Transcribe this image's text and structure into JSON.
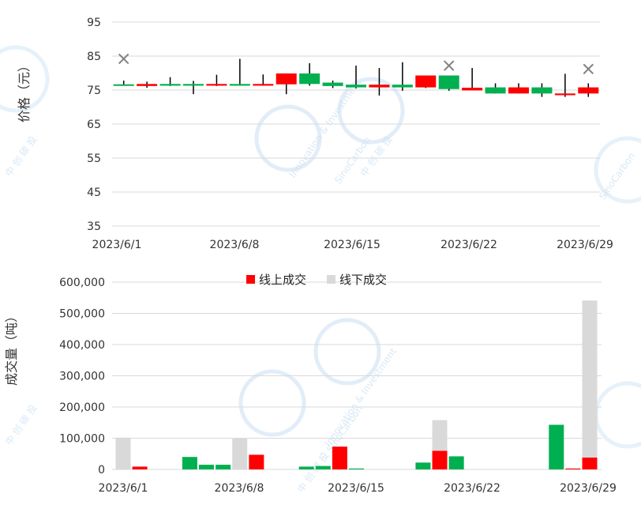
{
  "chart_data": [
    {
      "type": "candlestick",
      "ylabel": "价格（元）",
      "yticks": [
        35,
        45,
        55,
        65,
        75,
        85,
        95
      ],
      "ylim": [
        35,
        95
      ],
      "xticks": [
        "2023/6/1",
        "2023/6/8",
        "2023/6/15",
        "2023/6/22",
        "2023/6/29"
      ],
      "grid": true,
      "colors": {
        "up": "#ff0000",
        "down": "#00b050",
        "marker": "#7f7f7f",
        "wick": "#000000"
      },
      "candles": [
        {
          "date": "2023/6/1",
          "open": 76.3,
          "close": 76.7,
          "high": 77.8,
          "low": 76.3,
          "dir": "down"
        },
        {
          "date": "2023/6/2",
          "open": 76.2,
          "close": 76.8,
          "high": 77.5,
          "low": 75.7,
          "dir": "up"
        },
        {
          "date": "2023/6/3",
          "open": 76.3,
          "close": 76.8,
          "high": 78.8,
          "low": 76.2,
          "dir": "down"
        },
        {
          "date": "2023/6/4",
          "open": 76.3,
          "close": 76.8,
          "high": 77.7,
          "low": 73.8,
          "dir": "down"
        },
        {
          "date": "2023/6/5",
          "open": 76.3,
          "close": 76.8,
          "high": 79.5,
          "low": 76.2,
          "dir": "up"
        },
        {
          "date": "2023/6/6",
          "open": 76.3,
          "close": 76.8,
          "high": 84.2,
          "low": 76.3,
          "dir": "down"
        },
        {
          "date": "2023/6/7",
          "open": 76.3,
          "close": 76.8,
          "high": 79.6,
          "low": 76.3,
          "dir": "up"
        },
        {
          "date": "2023/6/8",
          "open": 76.7,
          "close": 79.9,
          "high": 79.9,
          "low": 73.8,
          "dir": "up"
        },
        {
          "date": "2023/6/9",
          "open": 76.8,
          "close": 79.9,
          "high": 82.9,
          "low": 76.3,
          "dir": "down"
        },
        {
          "date": "2023/6/10",
          "open": 76.2,
          "close": 77.2,
          "high": 77.8,
          "low": 75.6,
          "dir": "down"
        },
        {
          "date": "2023/6/11",
          "open": 75.8,
          "close": 76.6,
          "high": 82.2,
          "low": 75.5,
          "dir": "down"
        },
        {
          "date": "2023/6/12",
          "open": 75.8,
          "close": 76.6,
          "high": 81.5,
          "low": 73.4,
          "dir": "up"
        },
        {
          "date": "2023/6/13",
          "open": 75.8,
          "close": 76.6,
          "high": 83.2,
          "low": 74.8,
          "dir": "down"
        },
        {
          "date": "2023/6/14",
          "open": 75.8,
          "close": 79.3,
          "high": 79.3,
          "low": 75.6,
          "dir": "up"
        },
        {
          "date": "2023/6/15",
          "open": 75.3,
          "close": 79.3,
          "high": 79.3,
          "low": 74.8,
          "dir": "down"
        },
        {
          "date": "2023/6/16",
          "open": 74.9,
          "close": 75.7,
          "high": 81.5,
          "low": 74.9,
          "dir": "up"
        },
        {
          "date": "2023/6/17",
          "open": 74.0,
          "close": 75.8,
          "high": 77.0,
          "low": 74.0,
          "dir": "down"
        },
        {
          "date": "2023/6/18",
          "open": 74.0,
          "close": 75.8,
          "high": 77.0,
          "low": 74.0,
          "dir": "up"
        },
        {
          "date": "2023/6/19",
          "open": 74.0,
          "close": 75.8,
          "high": 77.0,
          "low": 73.0,
          "dir": "down"
        },
        {
          "date": "2023/6/20",
          "open": 73.5,
          "close": 74.0,
          "high": 79.8,
          "low": 73.0,
          "dir": "up"
        },
        {
          "date": "2023/6/21",
          "open": 74.0,
          "close": 75.8,
          "high": 77.0,
          "low": 73.0,
          "dir": "up"
        }
      ],
      "markers": [
        {
          "date": "2023/6/1",
          "value": 84.2
        },
        {
          "date": "2023/6/15",
          "value": 82.2
        },
        {
          "date": "2023/6/21",
          "value": 81.2
        }
      ]
    },
    {
      "type": "bar",
      "stacked": true,
      "ylabel": "成交量（吨）",
      "yticks": [
        "0",
        "100,000",
        "200,000",
        "300,000",
        "400,000",
        "500,000",
        "600,000"
      ],
      "ylim": [
        0,
        600000
      ],
      "xticks": [
        "2023/6/1",
        "2023/6/8",
        "2023/6/15",
        "2023/6/22",
        "2023/6/29"
      ],
      "legend": {
        "position": "top",
        "items": [
          {
            "name": "线上成交",
            "color": "#ff0000"
          },
          {
            "name": "线下成交",
            "color": "#d9d9d9"
          }
        ]
      },
      "grid": true,
      "colors": {
        "online": "#ff0000",
        "offline": "#d9d9d9",
        "green": "#00b050"
      },
      "bars": [
        {
          "date": "2023/6/1",
          "online": 0,
          "offline": 102000,
          "color": "offline"
        },
        {
          "date": "2023/6/2",
          "online": 9000,
          "offline": 0,
          "color": "online"
        },
        {
          "date": "2023/6/5",
          "online": 40000,
          "offline": 0,
          "color": "green"
        },
        {
          "date": "2023/6/6",
          "online": 15000,
          "offline": 0,
          "color": "green"
        },
        {
          "date": "2023/6/7",
          "online": 15000,
          "offline": 0,
          "color": "green"
        },
        {
          "date": "2023/6/8",
          "online": 0,
          "offline": 99000,
          "color": "offline"
        },
        {
          "date": "2023/6/9",
          "online": 47000,
          "offline": 0,
          "color": "online"
        },
        {
          "date": "2023/6/12",
          "online": 9000,
          "offline": 0,
          "color": "green"
        },
        {
          "date": "2023/6/13",
          "online": 11000,
          "offline": 0,
          "color": "green"
        },
        {
          "date": "2023/6/14",
          "online": 73000,
          "offline": 0,
          "color": "online"
        },
        {
          "date": "2023/6/15",
          "online": 3000,
          "offline": 0,
          "color": "green"
        },
        {
          "date": "2023/6/19",
          "online": 22000,
          "offline": 0,
          "color": "green"
        },
        {
          "date": "2023/6/20",
          "online": 60000,
          "offline": 98000,
          "color": "stack"
        },
        {
          "date": "2023/6/21",
          "online": 42000,
          "offline": 0,
          "color": "green"
        },
        {
          "date": "2023/6/27",
          "online": 143000,
          "offline": 0,
          "color": "green"
        },
        {
          "date": "2023/6/28",
          "online": 3000,
          "offline": 0,
          "color": "online"
        },
        {
          "date": "2023/6/29",
          "online": 38000,
          "offline": 503000,
          "color": "stack"
        }
      ]
    }
  ],
  "watermark": {
    "lines": [
      "SinoCarbon",
      "Innovation & Investment",
      "中 创 碳 投"
    ],
    "color": "#c8dff2"
  }
}
